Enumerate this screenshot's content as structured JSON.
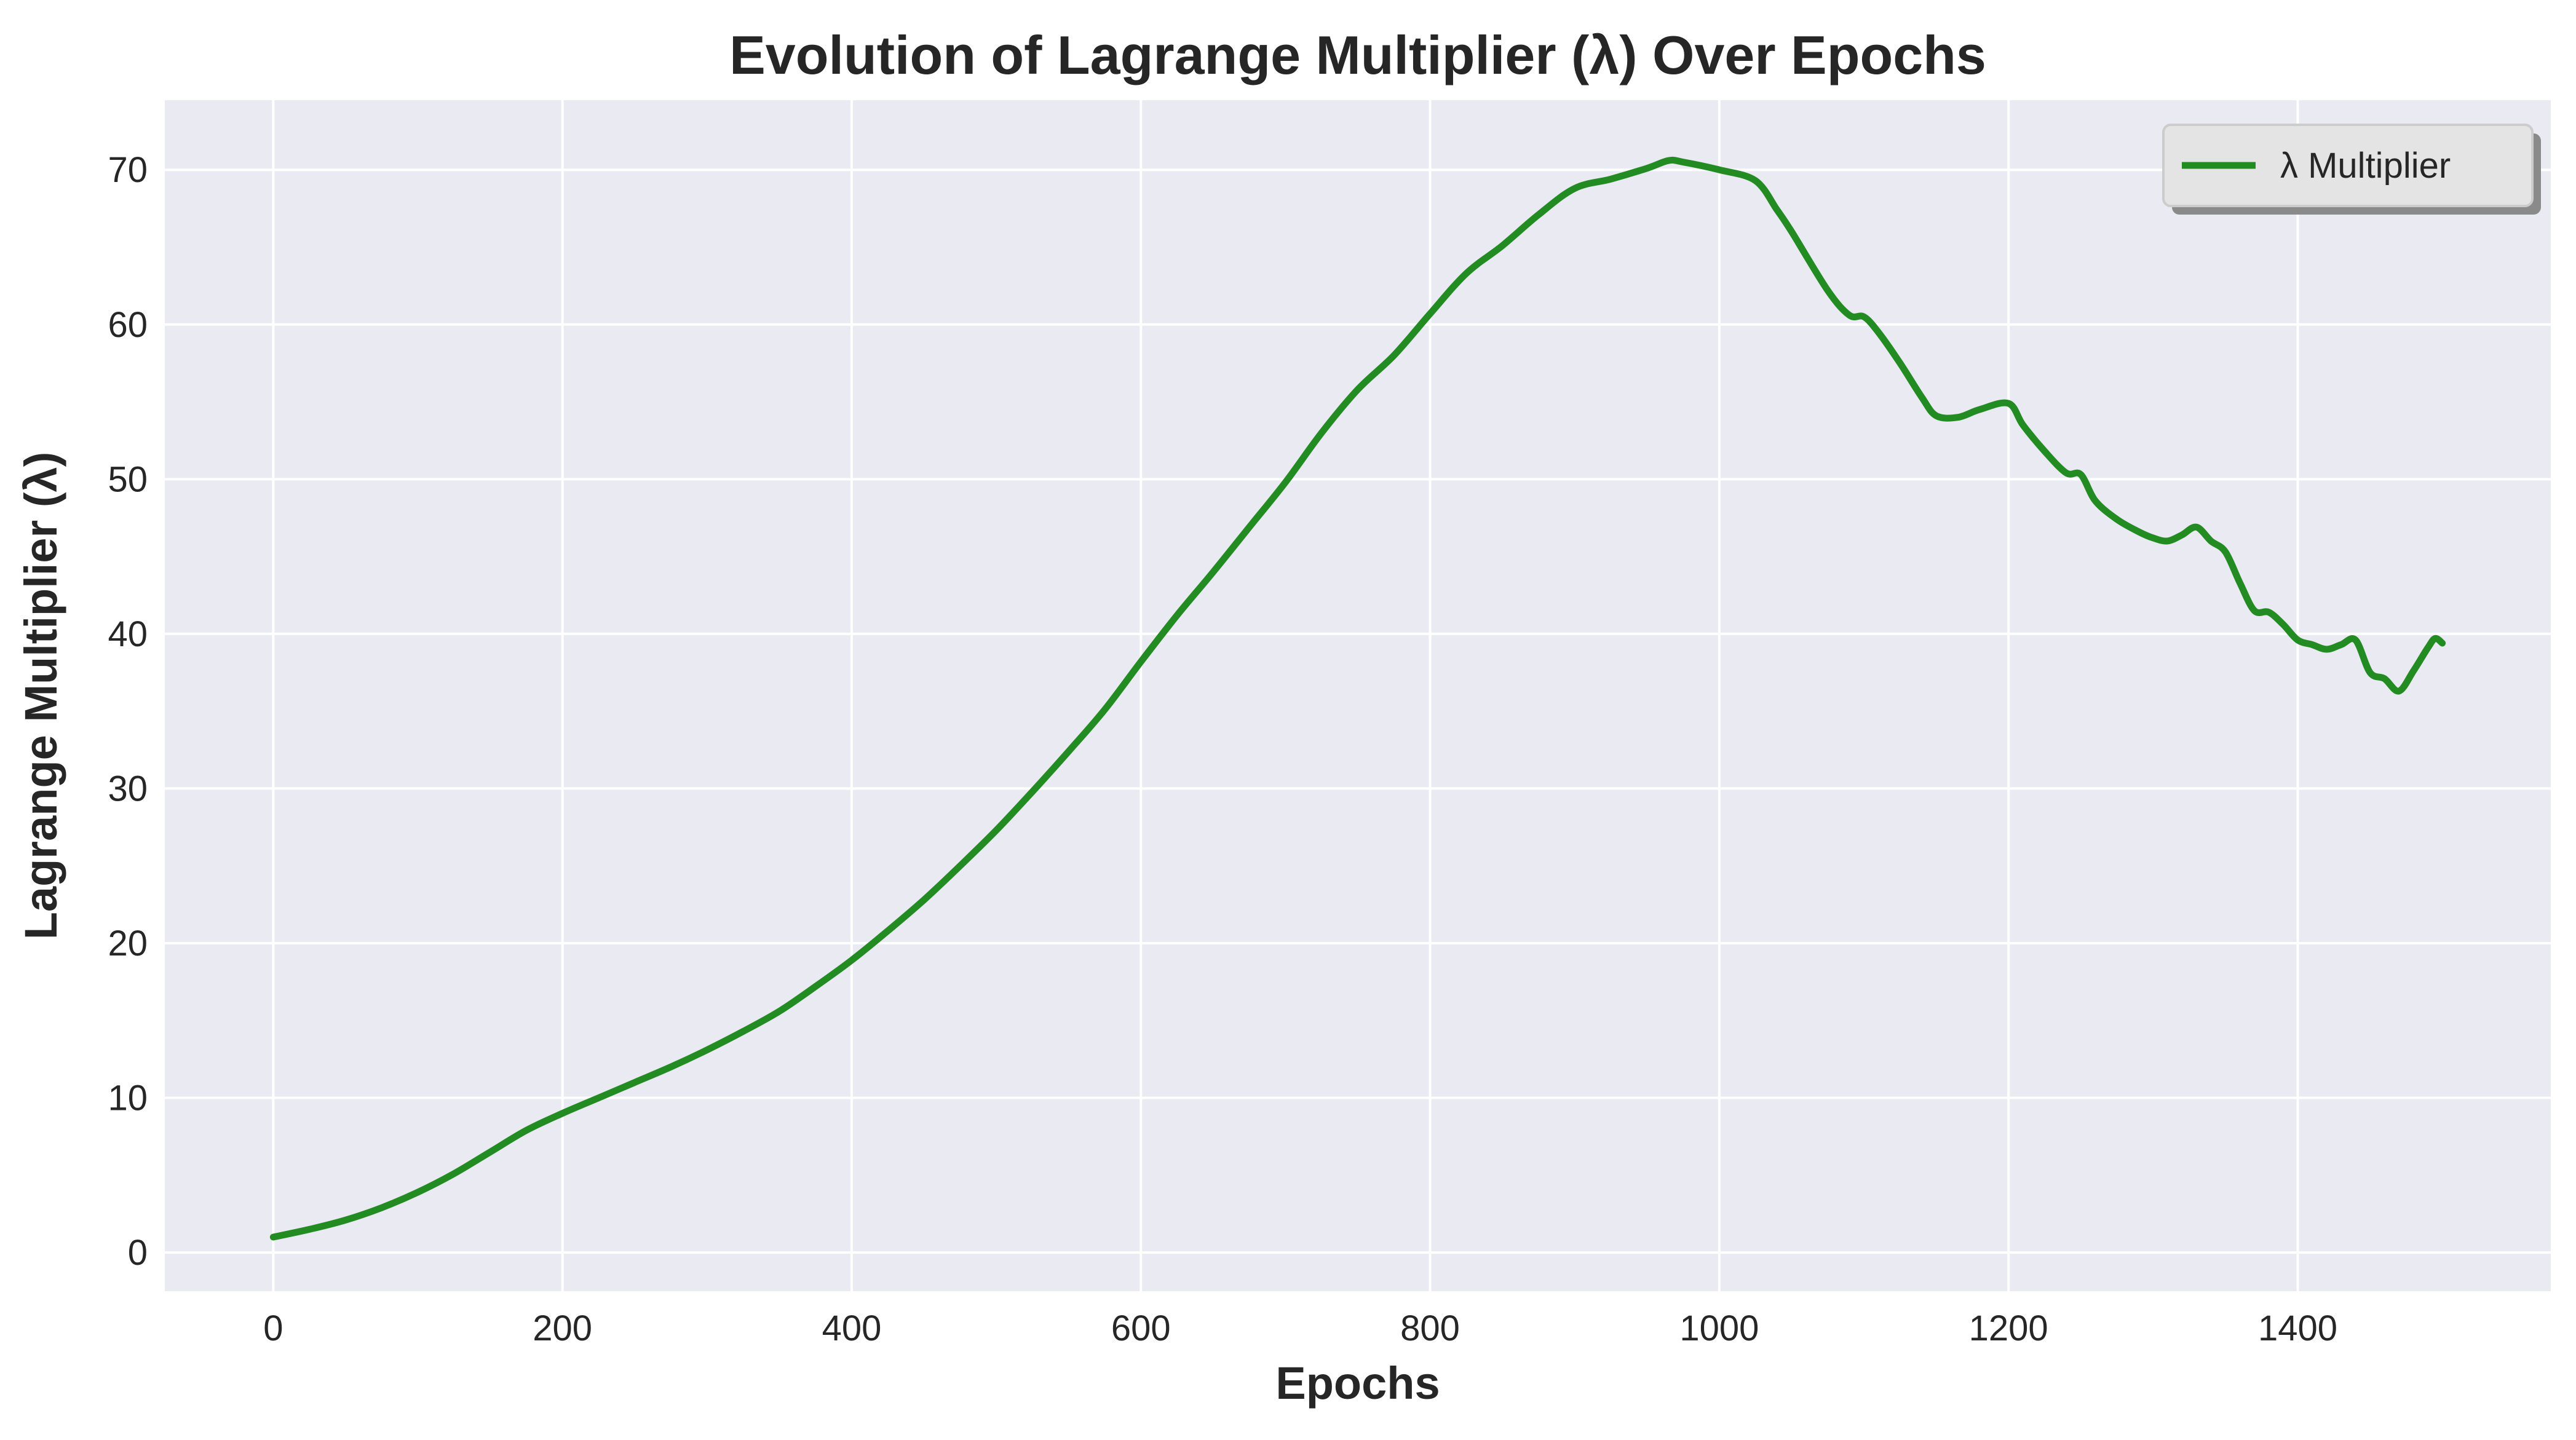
{
  "chart_data": {
    "type": "line",
    "title": "Evolution of Lagrange Multiplier (λ) Over Epochs",
    "xlabel": "Epochs",
    "ylabel": "Lagrange Multiplier (λ)",
    "xlim": [
      -75,
      1575
    ],
    "ylim": [
      -2.5,
      74.5
    ],
    "x_ticks": [
      0,
      200,
      400,
      600,
      800,
      1000,
      1200,
      1400
    ],
    "y_ticks": [
      0,
      10,
      20,
      30,
      40,
      50,
      60,
      70
    ],
    "grid": true,
    "legend": {
      "placement": "top-right",
      "entries": [
        "λ Multiplier"
      ]
    },
    "colors": {
      "line": "#228b22",
      "plot_background": "#eaeaf2",
      "grid": "#ffffff"
    },
    "series": [
      {
        "name": "λ Multiplier",
        "x": [
          0,
          25,
          50,
          75,
          100,
          125,
          150,
          175,
          200,
          225,
          250,
          275,
          300,
          325,
          350,
          375,
          400,
          425,
          450,
          475,
          500,
          525,
          550,
          575,
          600,
          625,
          650,
          675,
          700,
          725,
          750,
          775,
          800,
          825,
          850,
          875,
          900,
          925,
          950,
          965,
          975,
          1000,
          1025,
          1040,
          1050,
          1075,
          1090,
          1100,
          1110,
          1125,
          1140,
          1150,
          1165,
          1180,
          1200,
          1210,
          1225,
          1240,
          1250,
          1260,
          1275,
          1290,
          1300,
          1310,
          1320,
          1330,
          1340,
          1350,
          1360,
          1370,
          1380,
          1390,
          1400,
          1410,
          1420,
          1430,
          1440,
          1450,
          1460,
          1470,
          1480,
          1490,
          1495,
          1500
        ],
        "y": [
          1.0,
          1.5,
          2.1,
          2.9,
          3.9,
          5.1,
          6.5,
          7.9,
          9.0,
          10.0,
          11.0,
          12.0,
          13.1,
          14.3,
          15.6,
          17.2,
          18.9,
          20.8,
          22.8,
          25.0,
          27.3,
          29.8,
          32.4,
          35.1,
          38.2,
          41.2,
          44.0,
          46.9,
          49.8,
          53.0,
          55.8,
          58.0,
          60.7,
          63.3,
          65.1,
          67.1,
          68.8,
          69.4,
          70.1,
          70.6,
          70.5,
          70.0,
          69.3,
          67.4,
          66.0,
          62.2,
          60.6,
          60.5,
          59.5,
          57.5,
          55.3,
          54.1,
          54.0,
          54.5,
          54.9,
          53.5,
          51.8,
          50.4,
          50.3,
          48.6,
          47.4,
          46.6,
          46.2,
          46.0,
          46.4,
          46.9,
          46.0,
          45.3,
          43.3,
          41.5,
          41.4,
          40.6,
          39.6,
          39.3,
          39.0,
          39.3,
          39.6,
          37.5,
          37.1,
          36.3,
          37.6,
          39.1,
          39.7,
          39.4
        ]
      }
    ]
  }
}
